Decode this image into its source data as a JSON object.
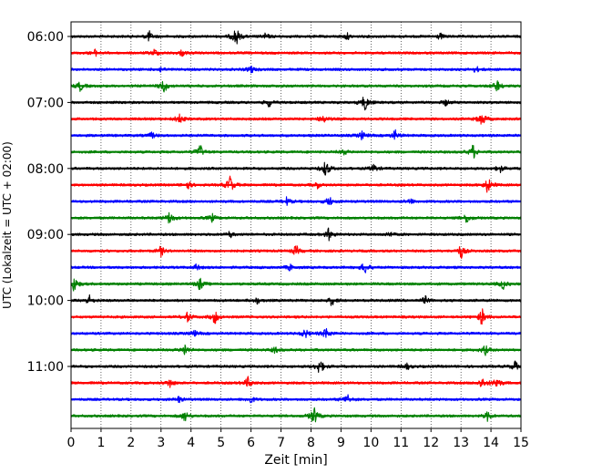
{
  "chart_data": {
    "type": "line",
    "title": "",
    "xlabel": "Zeit  [min]",
    "ylabel": "UTC (Lokalzeit = UTC + 02:00)",
    "xlim": [
      0,
      15
    ],
    "x_ticks": [
      0,
      1,
      2,
      3,
      4,
      5,
      6,
      7,
      8,
      9,
      10,
      11,
      12,
      13,
      14,
      15
    ],
    "x_tick_labels": [
      "0",
      "1",
      "2",
      "3",
      "4",
      "5",
      "6",
      "7",
      "8",
      "9",
      "10",
      "11",
      "12",
      "13",
      "14",
      "15"
    ],
    "y_tick_labels": [
      "06:00",
      "07:00",
      "08:00",
      "09:00",
      "10:00",
      "11:00"
    ],
    "y_tick_rows": [
      0,
      4,
      8,
      12,
      16,
      20
    ],
    "vertical_grid": "dotted",
    "row_interval_min": 15,
    "color_cycle": [
      "#000000",
      "#ff0000",
      "#0000ff",
      "#008000"
    ],
    "traces": [
      {
        "start": "06:00",
        "events": [
          [
            5.5,
            1.0
          ],
          [
            2.6,
            0.5
          ],
          [
            6.5,
            0.3
          ],
          [
            9.2,
            0.3
          ],
          [
            12.3,
            0.3
          ]
        ]
      },
      {
        "start": "06:15",
        "events": [
          [
            2.8,
            0.4
          ],
          [
            3.7,
            0.3
          ],
          [
            0.8,
            0.3
          ]
        ]
      },
      {
        "start": "06:30",
        "events": [
          [
            6.0,
            0.4
          ],
          [
            3.0,
            0.25
          ],
          [
            13.5,
            0.3
          ]
        ]
      },
      {
        "start": "06:45",
        "events": [
          [
            3.1,
            0.7
          ],
          [
            14.2,
            0.6
          ],
          [
            0.3,
            0.5
          ]
        ]
      },
      {
        "start": "07:00",
        "events": [
          [
            9.8,
            0.9
          ],
          [
            6.6,
            0.4
          ],
          [
            12.5,
            0.3
          ]
        ]
      },
      {
        "start": "07:15",
        "events": [
          [
            13.7,
            0.8
          ],
          [
            3.6,
            0.6
          ],
          [
            8.4,
            0.5
          ]
        ]
      },
      {
        "start": "07:30",
        "events": [
          [
            10.8,
            0.5
          ],
          [
            2.7,
            0.3
          ],
          [
            9.7,
            0.4
          ]
        ]
      },
      {
        "start": "07:45",
        "events": [
          [
            4.3,
            0.7
          ],
          [
            13.4,
            0.7
          ],
          [
            9.1,
            0.3
          ]
        ]
      },
      {
        "start": "08:00",
        "events": [
          [
            8.5,
            0.9
          ],
          [
            10.1,
            0.4
          ],
          [
            14.3,
            0.4
          ]
        ]
      },
      {
        "start": "08:15",
        "events": [
          [
            5.3,
            1.0
          ],
          [
            3.9,
            0.4
          ],
          [
            13.9,
            0.8
          ],
          [
            8.2,
            0.3
          ]
        ]
      },
      {
        "start": "08:30",
        "events": [
          [
            8.6,
            0.5
          ],
          [
            7.2,
            0.4
          ],
          [
            11.3,
            0.3
          ]
        ]
      },
      {
        "start": "08:45",
        "events": [
          [
            3.3,
            0.7
          ],
          [
            4.7,
            0.4
          ],
          [
            13.2,
            0.5
          ]
        ]
      },
      {
        "start": "09:00",
        "events": [
          [
            8.6,
            0.6
          ],
          [
            10.6,
            0.3
          ],
          [
            5.3,
            0.3
          ]
        ]
      },
      {
        "start": "09:15",
        "events": [
          [
            3.0,
            0.5
          ],
          [
            7.5,
            0.5
          ],
          [
            13.0,
            0.7
          ]
        ]
      },
      {
        "start": "09:30",
        "events": [
          [
            9.8,
            0.7
          ],
          [
            7.3,
            0.3
          ],
          [
            4.2,
            0.3
          ]
        ]
      },
      {
        "start": "09:45",
        "events": [
          [
            0.1,
            0.8
          ],
          [
            4.3,
            0.6
          ],
          [
            14.4,
            0.5
          ]
        ]
      },
      {
        "start": "10:00",
        "events": [
          [
            0.6,
            0.5
          ],
          [
            8.7,
            0.5
          ],
          [
            11.8,
            0.4
          ],
          [
            6.2,
            0.3
          ]
        ]
      },
      {
        "start": "10:15",
        "events": [
          [
            4.8,
            0.7
          ],
          [
            3.9,
            0.5
          ],
          [
            13.7,
            0.8
          ]
        ]
      },
      {
        "start": "10:30",
        "events": [
          [
            8.5,
            0.6
          ],
          [
            7.8,
            0.5
          ],
          [
            4.1,
            0.3
          ]
        ]
      },
      {
        "start": "10:45",
        "events": [
          [
            3.8,
            0.6
          ],
          [
            13.8,
            0.5
          ],
          [
            6.8,
            0.3
          ]
        ]
      },
      {
        "start": "11:00",
        "events": [
          [
            8.3,
            0.9
          ],
          [
            14.8,
            0.5
          ],
          [
            11.2,
            0.3
          ]
        ]
      },
      {
        "start": "11:15",
        "events": [
          [
            5.9,
            0.6
          ],
          [
            3.3,
            0.5
          ],
          [
            13.7,
            0.6
          ],
          [
            14.2,
            0.7
          ]
        ]
      },
      {
        "start": "11:30",
        "events": [
          [
            9.2,
            0.6
          ],
          [
            6.0,
            0.4
          ],
          [
            3.6,
            0.3
          ]
        ]
      },
      {
        "start": "11:45",
        "events": [
          [
            8.1,
            1.0
          ],
          [
            3.8,
            0.6
          ],
          [
            13.9,
            0.5
          ]
        ]
      }
    ]
  }
}
